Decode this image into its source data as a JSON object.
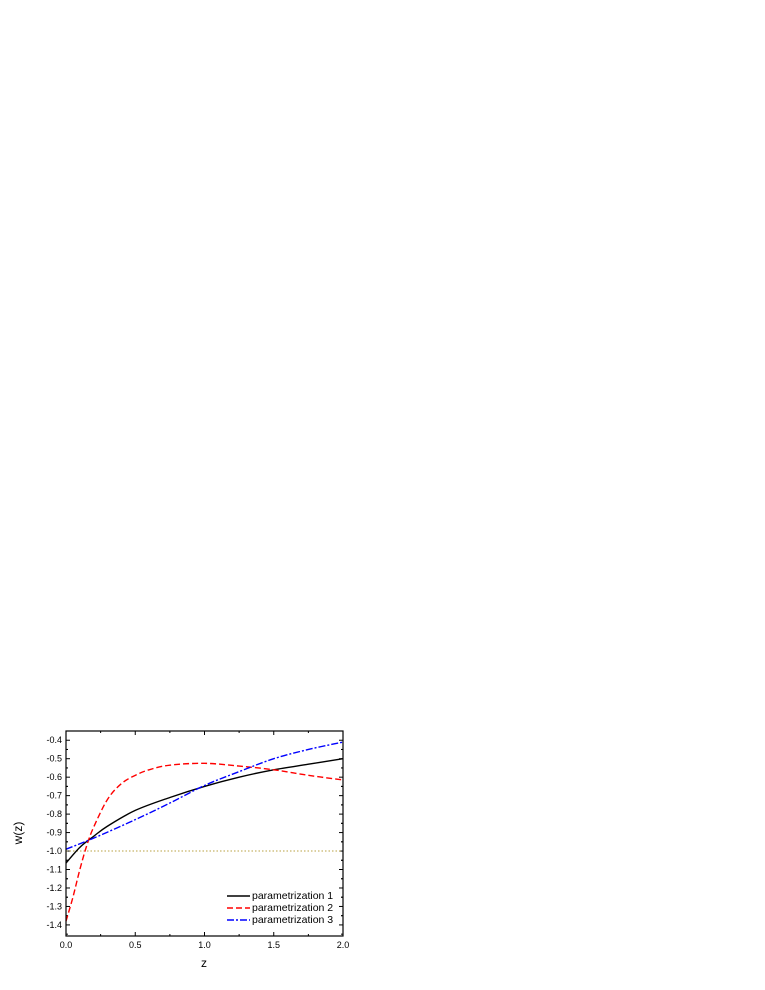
{
  "chart_data": {
    "type": "line",
    "xlabel": "z",
    "ylabel": "w(z)",
    "xlim": [
      0.0,
      2.0
    ],
    "ylim": [
      -1.46,
      -0.35
    ],
    "xticks": [
      "0.0",
      "0.5",
      "1.0",
      "1.5",
      "2.0"
    ],
    "yticks": [
      "-1.4",
      "-1.3",
      "-1.2",
      "-1.1",
      "-1.0",
      "-0.9",
      "-0.8",
      "-0.7",
      "-0.6",
      "-0.5",
      "-0.4"
    ],
    "grid": false,
    "legend_position": "bottom-right",
    "series": [
      {
        "name": "parametrization 1",
        "color": "#000000",
        "style": "solid",
        "x": [
          0,
          0.1,
          0.2,
          0.3,
          0.5,
          0.75,
          1.0,
          1.25,
          1.5,
          1.75,
          2.0
        ],
        "y": [
          -1.065,
          -0.98,
          -0.92,
          -0.865,
          -0.78,
          -0.71,
          -0.65,
          -0.6,
          -0.56,
          -0.53,
          -0.5
        ]
      },
      {
        "name": "parametrization 2",
        "color": "#ff0000",
        "style": "dashed",
        "x": [
          0,
          0.05,
          0.1,
          0.15,
          0.2,
          0.3,
          0.4,
          0.5,
          0.6,
          0.75,
          1.0,
          1.25,
          1.5,
          1.75,
          2.0
        ],
        "y": [
          -1.38,
          -1.25,
          -1.1,
          -0.97,
          -0.87,
          -0.72,
          -0.635,
          -0.59,
          -0.56,
          -0.535,
          -0.525,
          -0.54,
          -0.56,
          -0.59,
          -0.615
        ]
      },
      {
        "name": "parametrization 3",
        "color": "#0000ff",
        "style": "dash-dot",
        "x": [
          0,
          0.2,
          0.5,
          0.75,
          1.0,
          1.25,
          1.5,
          1.75,
          2.0
        ],
        "y": [
          -0.99,
          -0.93,
          -0.83,
          -0.74,
          -0.645,
          -0.57,
          -0.5,
          -0.45,
          -0.41
        ]
      }
    ],
    "reference_line": {
      "y": -1.0,
      "color": "#b8a040",
      "style": "dotted"
    }
  }
}
